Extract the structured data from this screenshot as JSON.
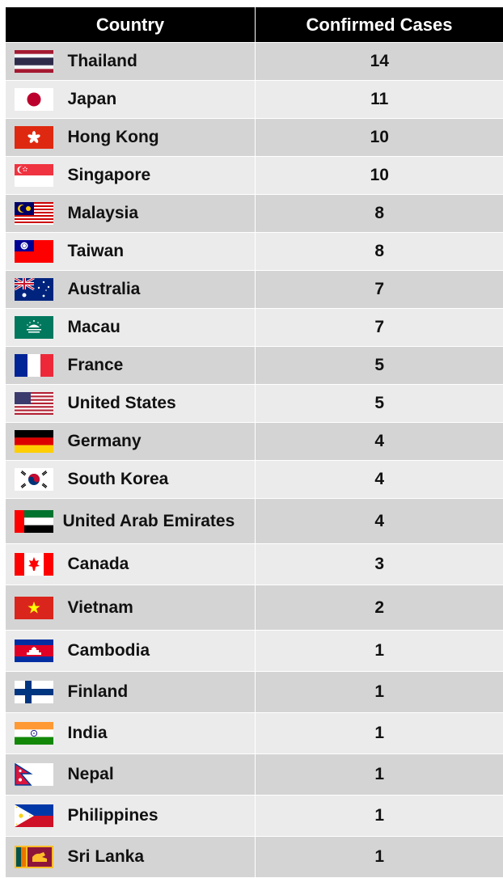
{
  "table": {
    "headers": [
      "Country",
      "Confirmed Cases"
    ],
    "rows": [
      {
        "country": "Thailand",
        "cases": "14",
        "flag": "thailand-flag"
      },
      {
        "country": "Japan",
        "cases": "11",
        "flag": "japan-flag"
      },
      {
        "country": "Hong Kong",
        "cases": "10",
        "flag": "hong-kong-flag"
      },
      {
        "country": "Singapore",
        "cases": "10",
        "flag": "singapore-flag"
      },
      {
        "country": "Malaysia",
        "cases": "8",
        "flag": "malaysia-flag"
      },
      {
        "country": "Taiwan",
        "cases": "8",
        "flag": "taiwan-flag"
      },
      {
        "country": "Australia",
        "cases": "7",
        "flag": "australia-flag"
      },
      {
        "country": "Macau",
        "cases": "7",
        "flag": "macau-flag"
      },
      {
        "country": "France",
        "cases": "5",
        "flag": "france-flag"
      },
      {
        "country": "United States",
        "cases": "5",
        "flag": "united-states-flag"
      },
      {
        "country": "Germany",
        "cases": "4",
        "flag": "germany-flag"
      },
      {
        "country": "South Korea",
        "cases": "4",
        "flag": "south-korea-flag"
      },
      {
        "country": "United Arab Emirates",
        "cases": "4",
        "flag": "uae-flag"
      },
      {
        "country": "Canada",
        "cases": "3",
        "flag": "canada-flag"
      },
      {
        "country": "Vietnam",
        "cases": "2",
        "flag": "vietnam-flag"
      },
      {
        "country": "Cambodia",
        "cases": "1",
        "flag": "cambodia-flag"
      },
      {
        "country": "Finland",
        "cases": "1",
        "flag": "finland-flag"
      },
      {
        "country": "India",
        "cases": "1",
        "flag": "india-flag"
      },
      {
        "country": "Nepal",
        "cases": "1",
        "flag": "nepal-flag"
      },
      {
        "country": "Philippines",
        "cases": "1",
        "flag": "philippines-flag"
      },
      {
        "country": "Sri Lanka",
        "cases": "1",
        "flag": "sri-lanka-flag"
      }
    ]
  },
  "chart_data": {
    "type": "table",
    "columns": [
      "Country",
      "Confirmed Cases"
    ],
    "categories": [
      "Thailand",
      "Japan",
      "Hong Kong",
      "Singapore",
      "Malaysia",
      "Taiwan",
      "Australia",
      "Macau",
      "France",
      "United States",
      "Germany",
      "South Korea",
      "United Arab Emirates",
      "Canada",
      "Vietnam",
      "Cambodia",
      "Finland",
      "India",
      "Nepal",
      "Philippines",
      "Sri Lanka"
    ],
    "values": [
      14,
      11,
      10,
      10,
      8,
      8,
      7,
      7,
      5,
      5,
      4,
      4,
      4,
      3,
      2,
      1,
      1,
      1,
      1,
      1,
      1
    ]
  }
}
